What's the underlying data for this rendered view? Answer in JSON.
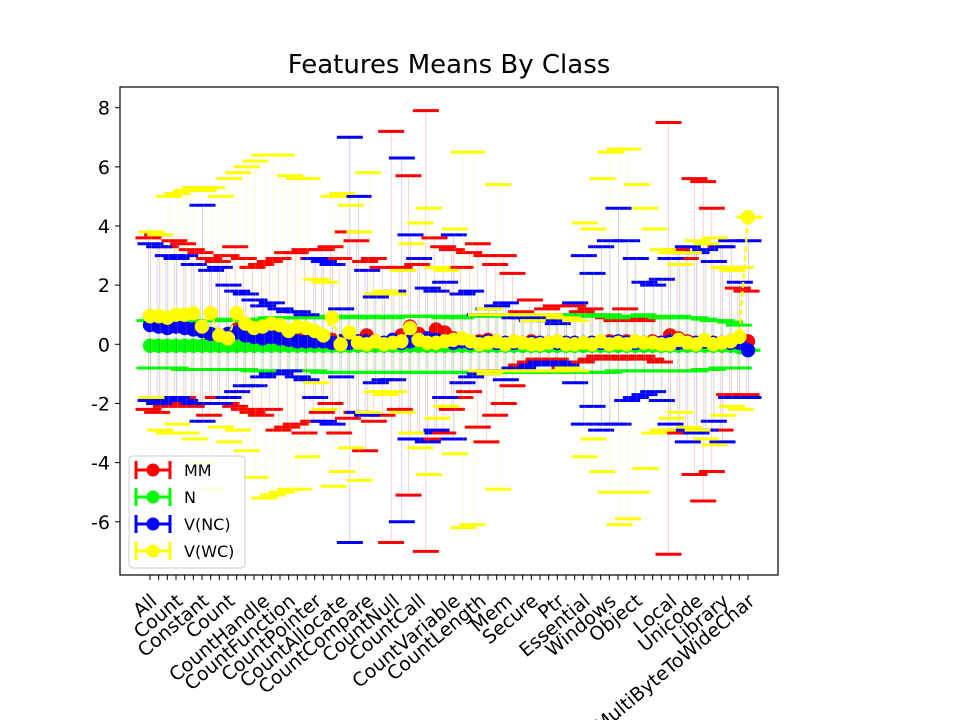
{
  "chart_data": {
    "type": "errorbar-scatter",
    "title": "Features Means By Class",
    "xlabel": "",
    "ylabel": "",
    "ylim": [
      -7.8,
      8.7
    ],
    "y_ticks": [
      8,
      6,
      4,
      2,
      0,
      -2,
      -4,
      -6
    ],
    "grid": false,
    "legend_position": "lower-left",
    "x_tick_count": 70,
    "x_tick_labels_visible": [
      "All",
      "Count",
      "Constant",
      "Count",
      "CountHandle",
      "CountFunction",
      "CountPointer",
      "CountAllocate",
      "CountCompare",
      "CountNull",
      "CountCall",
      "CountVariable",
      "CountLength",
      "Mem",
      "Secure",
      "Ptr",
      "Essential",
      "Windows",
      "Object",
      "Local",
      "Unicode",
      "Library",
      "MultiByteToWideChar"
    ],
    "series": [
      {
        "name": "MM",
        "color": "#ff0000",
        "means": [
          0.95,
          0.85,
          0.8,
          0.7,
          0.75,
          0.65,
          0.5,
          0.3,
          0.2,
          0.3,
          0.5,
          0.5,
          0.4,
          0.3,
          0.3,
          0.2,
          0.3,
          0.2,
          0.15,
          0.2,
          0.2,
          0.15,
          0.1,
          0.05,
          0.1,
          0.3,
          0.1,
          0.05,
          0.1,
          0.3,
          0.6,
          0.35,
          0.1,
          0.5,
          0.4,
          0.2,
          0.1,
          0.05,
          0.1,
          0.15,
          0.1,
          0.05,
          0.1,
          0.05,
          0.1,
          0.05,
          0.05,
          0.1,
          0.05,
          0.05,
          0.05,
          0.05,
          0.05,
          0.1,
          0.05,
          0.1,
          0.05,
          0.05,
          0.1,
          0.05,
          0.3,
          0.2,
          0.1,
          0.05,
          0.1,
          0.05,
          0.05,
          0.1,
          0.1,
          0.1
        ],
        "upper": [
          3.6,
          3.7,
          3.3,
          3.5,
          3.4,
          3.2,
          3.1,
          2.9,
          2.8,
          3.0,
          3.3,
          2.9,
          2.6,
          2.7,
          2.8,
          2.9,
          3.1,
          3.1,
          3.2,
          2.9,
          3.2,
          3.3,
          2.9,
          3.8,
          3.5,
          2.8,
          2.9,
          2.6,
          7.2,
          2.6,
          5.7,
          2.7,
          7.9,
          3.6,
          3.3,
          3.2,
          2.6,
          3.1,
          3.4,
          3.0,
          2.7,
          3.0,
          2.4,
          1.1,
          1.5,
          1.0,
          1.2,
          1.3,
          1.0,
          1.3,
          1.1,
          1.2,
          1.0,
          0.9,
          0.8,
          1.2,
          0.9,
          0.8,
          0.9,
          0.9,
          7.5,
          3.2,
          2.9,
          5.6,
          5.5,
          4.6,
          3.3,
          2.6,
          1.9,
          1.8
        ],
        "lower": [
          -2.2,
          -2.3,
          -2.1,
          -2.0,
          -1.8,
          -2.1,
          -2.0,
          -2.4,
          -1.8,
          -2.0,
          -2.1,
          -2.2,
          -2.3,
          -2.4,
          -2.2,
          -2.9,
          -2.8,
          -2.7,
          -3.0,
          -2.6,
          -2.3,
          -2.0,
          -3.0,
          -2.5,
          -2.3,
          -3.6,
          -2.6,
          -2.4,
          -6.7,
          -2.2,
          -5.1,
          -3.2,
          -7.0,
          -3.2,
          -3.0,
          -2.2,
          -1.8,
          -1.6,
          -2.8,
          -3.3,
          -2.4,
          -2.0,
          -1.4,
          -0.7,
          -0.6,
          -0.5,
          -0.5,
          -0.5,
          -0.8,
          -0.6,
          -0.6,
          -0.5,
          -0.4,
          -0.4,
          -0.5,
          -0.5,
          -0.4,
          -0.4,
          -0.5,
          -0.6,
          -7.1,
          -3.0,
          -3.0,
          -4.4,
          -5.3,
          -4.3,
          -2.9,
          -1.7,
          -1.8,
          -1.7
        ]
      },
      {
        "name": "N",
        "color": "#00ff00",
        "means": [
          -0.05,
          -0.05,
          -0.05,
          -0.05,
          -0.05,
          -0.05,
          -0.05,
          -0.05,
          -0.05,
          -0.05,
          -0.05,
          -0.05,
          -0.05,
          -0.05,
          -0.05,
          -0.05,
          -0.05,
          -0.05,
          -0.05,
          -0.05,
          -0.05,
          -0.05,
          -0.05,
          -0.05,
          -0.05,
          -0.05,
          -0.05,
          -0.05,
          -0.05,
          -0.05,
          -0.05,
          -0.05,
          -0.05,
          -0.05,
          -0.05,
          -0.05,
          -0.05,
          -0.05,
          -0.05,
          -0.05,
          -0.05,
          -0.05,
          -0.05,
          -0.05,
          -0.05,
          -0.05,
          -0.05,
          -0.05,
          -0.05,
          -0.05,
          -0.05,
          -0.05,
          -0.05,
          -0.05,
          -0.05,
          -0.05,
          -0.05,
          -0.05,
          -0.05,
          -0.05,
          -0.05,
          -0.05,
          -0.05,
          -0.05,
          -0.05,
          -0.05,
          -0.05,
          -0.05,
          -0.1,
          -0.2
        ],
        "upper": [
          0.8,
          0.8,
          0.75,
          0.8,
          0.8,
          0.8,
          0.8,
          0.8,
          0.8,
          0.85,
          0.8,
          0.8,
          0.8,
          0.85,
          0.9,
          0.9,
          0.9,
          0.9,
          0.9,
          0.95,
          0.9,
          0.9,
          0.95,
          0.95,
          0.9,
          0.95,
          0.9,
          0.95,
          0.9,
          0.95,
          0.95,
          0.95,
          0.95,
          0.95,
          0.9,
          0.95,
          0.9,
          0.95,
          0.95,
          1.0,
          0.95,
          0.95,
          1.0,
          1.0,
          0.95,
          1.0,
          0.95,
          1.0,
          1.0,
          0.95,
          1.0,
          0.95,
          0.95,
          1.0,
          0.9,
          0.95,
          0.95,
          1.0,
          0.95,
          0.9,
          0.9,
          0.95,
          0.9,
          0.9,
          0.85,
          0.8,
          0.8,
          0.75,
          0.65,
          -0.2
        ],
        "lower": [
          -0.8,
          -0.8,
          -0.8,
          -0.8,
          -0.85,
          -0.85,
          -0.85,
          -0.85,
          -0.85,
          -0.85,
          -0.85,
          -0.85,
          -0.9,
          -0.9,
          -0.9,
          -0.9,
          -0.9,
          -0.9,
          -0.9,
          -0.9,
          -0.95,
          -0.95,
          -0.95,
          -0.95,
          -0.95,
          -0.95,
          -0.95,
          -0.95,
          -0.95,
          -0.95,
          -0.95,
          -0.95,
          -0.95,
          -0.95,
          -0.95,
          -0.95,
          -0.95,
          -0.95,
          -0.95,
          -1.0,
          -0.95,
          -0.95,
          -0.95,
          -0.95,
          -0.95,
          -0.95,
          -0.95,
          -0.95,
          -0.95,
          -0.95,
          -0.95,
          -0.95,
          -0.95,
          -0.95,
          -0.9,
          -0.9,
          -0.9,
          -0.9,
          -0.9,
          -0.9,
          -0.9,
          -0.9,
          -0.9,
          -0.9,
          -0.85,
          -0.85,
          -0.8,
          -0.8,
          -0.8,
          -0.2
        ]
      },
      {
        "name": "V(NC)",
        "color": "#0000ff",
        "means": [
          0.65,
          0.6,
          0.55,
          0.6,
          0.55,
          0.5,
          0.45,
          0.35,
          0.3,
          0.35,
          0.4,
          0.3,
          0.25,
          0.2,
          0.25,
          0.2,
          0.15,
          0.1,
          0.1,
          0.1,
          0.1,
          0.05,
          0.1,
          0.05,
          0.1,
          0.1,
          0.1,
          0.05,
          0.15,
          0.05,
          0.1,
          0.15,
          0.2,
          0.15,
          0.1,
          0.05,
          0.1,
          0.05,
          0.05,
          0.1,
          0.05,
          0.05,
          0.05,
          0.05,
          0.05,
          0.05,
          0.05,
          0.05,
          0.05,
          0.05,
          0.05,
          0.05,
          0.05,
          0.05,
          0.1,
          0.05,
          0.05,
          0.05,
          0.05,
          0.05,
          0.1,
          0.05,
          0.05,
          0.05,
          0.1,
          0.05,
          0.05,
          0.05,
          0.05,
          -0.2
        ],
        "upper": [
          3.4,
          3.3,
          3.0,
          2.9,
          3.0,
          2.7,
          4.7,
          2.5,
          2.6,
          2.0,
          1.8,
          1.7,
          1.5,
          1.3,
          1.4,
          1.2,
          1.1,
          1.1,
          1.0,
          2.9,
          2.8,
          2.7,
          1.2,
          7.0,
          5.0,
          2.5,
          1.6,
          1.7,
          1.8,
          6.3,
          3.7,
          2.9,
          1.9,
          1.8,
          2.1,
          3.7,
          1.7,
          1.8,
          1.0,
          1.2,
          1.3,
          1.4,
          0.9,
          0.9,
          0.8,
          0.9,
          0.8,
          0.7,
          0.9,
          1.4,
          3.0,
          2.4,
          3.3,
          3.5,
          4.6,
          3.5,
          2.9,
          2.1,
          2.0,
          2.2,
          2.9,
          3.1,
          3.3,
          3.1,
          3.2,
          2.8,
          3.3,
          3.5,
          2.1,
          3.5
        ],
        "lower": [
          -1.9,
          -2.0,
          -1.9,
          -1.8,
          -1.9,
          -2.0,
          -2.6,
          -2.0,
          -2.0,
          -1.8,
          -1.6,
          -1.4,
          -1.4,
          -1.1,
          -1.0,
          -1.0,
          -0.9,
          -1.1,
          -1.2,
          -1.8,
          -2.6,
          -2.7,
          -1.1,
          -6.7,
          -2.3,
          -2.4,
          -1.3,
          -1.2,
          -1.2,
          -6.0,
          -3.2,
          -3.0,
          -3.3,
          -2.9,
          -1.8,
          -3.2,
          -1.3,
          -1.1,
          -1.0,
          -0.9,
          -0.9,
          -1.2,
          -0.8,
          -0.8,
          -0.7,
          -0.6,
          -0.7,
          -0.6,
          -0.7,
          -1.3,
          -2.7,
          -2.1,
          -2.9,
          -2.7,
          -2.7,
          -1.9,
          -1.8,
          -1.7,
          -1.6,
          -1.9,
          -2.7,
          -2.9,
          -3.3,
          -3.0,
          -2.9,
          -2.6,
          -3.3,
          -1.8,
          -1.8,
          -1.8
        ]
      },
      {
        "name": "V(WC)",
        "color": "#ffff00",
        "means": [
          0.95,
          0.95,
          0.9,
          1.0,
          1.0,
          1.05,
          0.6,
          1.05,
          0.3,
          0.2,
          1.05,
          0.7,
          0.55,
          0.6,
          0.7,
          0.65,
          0.45,
          0.6,
          0.55,
          0.45,
          0.3,
          0.9,
          0.0,
          0.4,
          0.05,
          0.0,
          0.1,
          0.0,
          0.05,
          0.1,
          0.55,
          0.15,
          0.05,
          0.05,
          0.1,
          0.15,
          0.2,
          0.1,
          0.0,
          0.05,
          0.1,
          0.0,
          0.1,
          0.05,
          0.0,
          0.0,
          0.05,
          0.1,
          0.0,
          0.0,
          0.05,
          0.0,
          0.1,
          0.0,
          0.05,
          0.0,
          0.1,
          0.05,
          0.05,
          0.0,
          0.0,
          0.15,
          0.05,
          0.0,
          0.15,
          0.0,
          0.05,
          0.1,
          0.25,
          4.3
        ],
        "upper": [
          3.8,
          3.7,
          5.0,
          5.1,
          5.2,
          5.3,
          5.2,
          5.3,
          5.0,
          5.6,
          5.8,
          6.0,
          6.2,
          6.4,
          6.4,
          6.4,
          5.7,
          5.6,
          5.6,
          2.2,
          2.1,
          5.0,
          5.1,
          4.7,
          3.8,
          5.8,
          1.7,
          1.8,
          1.7,
          2.5,
          3.4,
          4.1,
          4.6,
          2.6,
          2.5,
          3.9,
          6.5,
          6.5,
          1.0,
          1.2,
          5.4,
          1.0,
          1.0,
          1.0,
          0.8,
          1.0,
          1.0,
          0.9,
          0.9,
          0.8,
          4.1,
          3.9,
          5.6,
          6.5,
          6.6,
          6.6,
          5.4,
          4.6,
          3.9,
          3.2,
          3.1,
          2.7,
          3.1,
          3.5,
          3.4,
          3.6,
          2.6,
          2.5,
          2.6,
          4.3
        ],
        "lower": [
          -1.8,
          -2.9,
          -3.0,
          -2.7,
          -3.0,
          -3.2,
          -4.0,
          -4.9,
          -2.8,
          -3.3,
          -2.9,
          -3.6,
          -4.5,
          -5.2,
          -5.1,
          -5.0,
          -4.9,
          -4.9,
          -3.8,
          -1.3,
          -2.2,
          -4.8,
          -4.3,
          -3.5,
          -4.6,
          -2.3,
          -1.6,
          -1.7,
          -1.6,
          -2.3,
          -3.0,
          -3.5,
          -4.4,
          -2.5,
          -2.1,
          -3.7,
          -6.2,
          -6.1,
          -0.9,
          -1.0,
          -4.9,
          -0.9,
          -0.9,
          -0.9,
          -0.9,
          -0.9,
          -0.9,
          -0.9,
          -0.8,
          -0.9,
          -3.8,
          -3.2,
          -4.3,
          -5.0,
          -6.1,
          -5.9,
          -5.0,
          -4.2,
          -3.0,
          -2.9,
          -2.5,
          -2.3,
          -2.8,
          -2.9,
          -3.2,
          -3.4,
          -2.4,
          -2.1,
          -2.2,
          4.3
        ]
      }
    ]
  }
}
